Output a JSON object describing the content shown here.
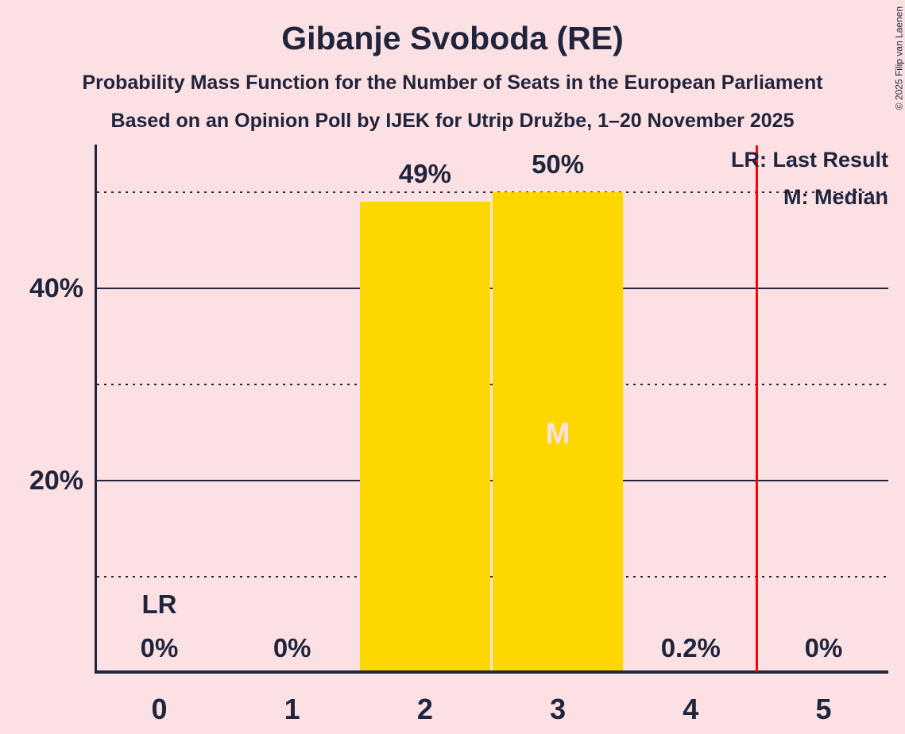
{
  "meta": {
    "copyright": "© 2025 Filip van Laenen"
  },
  "header": {
    "title": "Gibanje Svoboda (RE)",
    "subtitle": "Probability Mass Function for the Number of Seats in the European Parliament",
    "poll_line": "Based on an Opinion Poll by IJEK for Utrip Družbe, 1–20 November 2025"
  },
  "legend": {
    "last_result": "LR: Last Result",
    "median": "M: Median"
  },
  "colors": {
    "background": "#FCE1E4",
    "bar": "#FFD700",
    "ink": "#20243C",
    "reference_line": "#FF0000"
  },
  "chart_data": {
    "type": "bar",
    "title": "Gibanje Svoboda (RE)",
    "categories": [
      "0",
      "1",
      "2",
      "3",
      "4",
      "5"
    ],
    "values": [
      0,
      0,
      49,
      50,
      0.2,
      0
    ],
    "value_labels": [
      "0%",
      "0%",
      "49%",
      "50%",
      "0.2%",
      "0%"
    ],
    "xlabel": "",
    "ylabel": "",
    "ylim": [
      0,
      55
    ],
    "y_tick_values": [
      20,
      40
    ],
    "y_tick_labels": [
      "20%",
      "40%"
    ],
    "y_solid_gridlines": [
      20,
      40
    ],
    "y_dotted_gridlines": [
      10,
      30,
      50
    ],
    "grid": "horizontal",
    "legend_position": "top-right",
    "bar_color": "#FFD700",
    "last_result_category": "0",
    "last_result_marker": "LR",
    "median_category": "3",
    "median_marker": "M",
    "reference_line_x": 4.5
  }
}
